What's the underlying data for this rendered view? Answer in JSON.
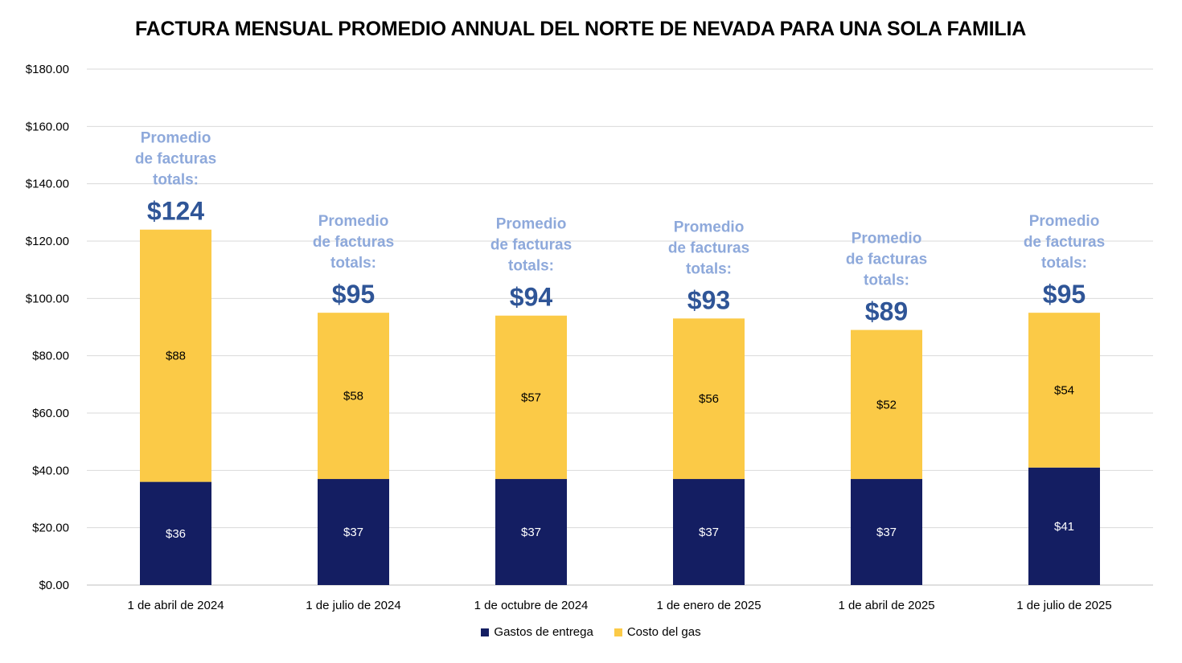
{
  "chart_data": {
    "type": "bar",
    "stacked": true,
    "title": "FACTURA MENSUAL PROMEDIO ANNUAL DEL NORTE DE NEVADA PARA UNA SOLA FAMILIA",
    "categories": [
      "1 de abril de 2024",
      "1 de julio de 2024",
      "1 de octubre de 2024",
      "1 de enero de 2025",
      "1 de abril de 2025",
      "1 de julio de 2025"
    ],
    "series": [
      {
        "name": "Gastos de entrega",
        "values": [
          36,
          37,
          37,
          37,
          37,
          41
        ],
        "labels": [
          "$36",
          "$37",
          "$37",
          "$37",
          "$37",
          "$41"
        ],
        "color": "#141E62",
        "label_color": "#FFFFFF"
      },
      {
        "name": "Costo del gas",
        "values": [
          88,
          58,
          57,
          56,
          52,
          54
        ],
        "labels": [
          "$88",
          "$58",
          "$57",
          "$56",
          "$52",
          "$54"
        ],
        "color": "#FBCA47",
        "label_color": "#000000"
      }
    ],
    "totals": [
      124,
      95,
      94,
      93,
      89,
      95
    ],
    "callout_lines": [
      "Promedio",
      "de facturas",
      "totals:"
    ],
    "total_labels": [
      "$124",
      "$95",
      "$94",
      "$93",
      "$89",
      "$95"
    ],
    "ylim": [
      0,
      180
    ],
    "yticks": [
      0,
      20,
      40,
      60,
      80,
      100,
      120,
      140,
      160,
      180
    ],
    "ytick_labels": [
      "$0.00",
      "$20.00",
      "$40.00",
      "$60.00",
      "$80.00",
      "$100.00",
      "$120.00",
      "$140.00",
      "$160.00",
      "$180.00"
    ],
    "xlabel": "",
    "ylabel": "",
    "grid": true,
    "legend_position": "bottom"
  }
}
